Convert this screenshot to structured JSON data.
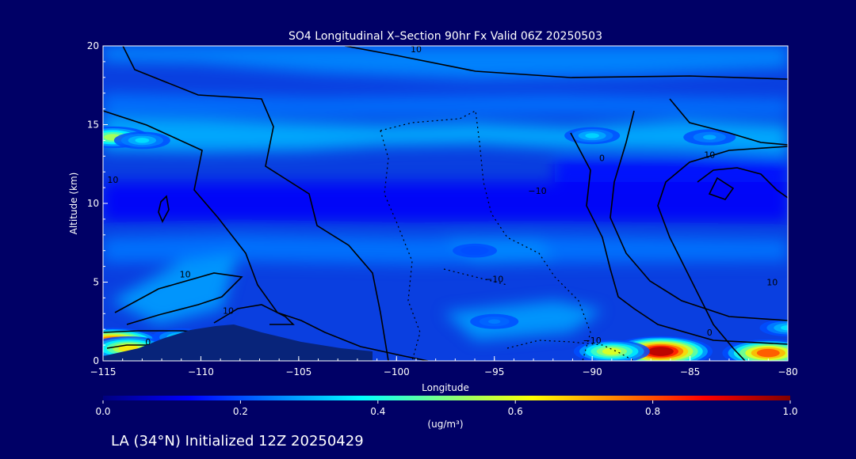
{
  "chart_data": {
    "type": "heatmap",
    "title": "SO4 Longitudinal X–Section 90hr  Fx Valid 06Z 20250503",
    "xlabel": "Longitude",
    "ylabel": "Altitude (km)",
    "xlim": [
      -115,
      -80
    ],
    "ylim": [
      0,
      20
    ],
    "x_ticks": [
      -115,
      -110,
      -105,
      -100,
      -95,
      -90,
      -85,
      -80
    ],
    "x_tick_labels": [
      "−115",
      "−110",
      "−105",
      "−100",
      "−95",
      "−90",
      "−85",
      "−80"
    ],
    "y_ticks": [
      0,
      5,
      10,
      15,
      20
    ],
    "y_tick_labels": [
      "0",
      "5",
      "10",
      "15",
      "20"
    ],
    "colorbar": {
      "min": 0.0,
      "max": 1.0,
      "units": "(ug/m³)",
      "ticks": [
        0.0,
        0.2,
        0.4,
        0.6,
        0.8,
        1.0
      ],
      "tick_labels": [
        "0.0",
        "0.2",
        "0.4",
        "0.6",
        "0.8",
        "1.0"
      ],
      "colors": [
        "#00007f",
        "#0000ff",
        "#0080ff",
        "#00ffff",
        "#80ff80",
        "#ffff00",
        "#ff8000",
        "#ff0000",
        "#7f0000"
      ]
    },
    "concentration_features": [
      {
        "lon": -114.5,
        "alt": 14.2,
        "value": 0.55
      },
      {
        "lon": -113,
        "alt": 14,
        "value": 0.35
      },
      {
        "lon": -90,
        "alt": 14.3,
        "value": 0.34
      },
      {
        "lon": -84,
        "alt": 14.2,
        "value": 0.3
      },
      {
        "lon": -114.5,
        "alt": 1.2,
        "value": 0.85
      },
      {
        "lon": -113.7,
        "alt": 0.8,
        "value": 0.65
      },
      {
        "lon": -111,
        "alt": 1.5,
        "value": 0.38
      },
      {
        "lon": -86.5,
        "alt": 0.6,
        "value": 0.95
      },
      {
        "lon": -89,
        "alt": 0.6,
        "value": 0.6
      },
      {
        "lon": -81,
        "alt": 0.5,
        "value": 0.8
      },
      {
        "lon": -80,
        "alt": 2.1,
        "value": 0.35
      },
      {
        "lon": -95,
        "alt": 2.5,
        "value": 0.25
      },
      {
        "lon": -96,
        "alt": 7,
        "value": 0.2
      }
    ],
    "contour_labels": [
      {
        "text": "10",
        "lon": -99,
        "alt": 19.6
      },
      {
        "text": "10",
        "lon": -114.5,
        "alt": 11.3
      },
      {
        "text": "10",
        "lon": -110.8,
        "alt": 5.3
      },
      {
        "text": "10",
        "lon": -108.6,
        "alt": 3.0
      },
      {
        "text": "0",
        "lon": -112.7,
        "alt": 1.0
      },
      {
        "text": "0",
        "lon": -89.5,
        "alt": 12.7
      },
      {
        "text": "−10",
        "lon": -92.8,
        "alt": 10.6
      },
      {
        "text": "−10",
        "lon": -95,
        "alt": 5.0
      },
      {
        "text": "−10",
        "lon": -90,
        "alt": 1.1
      },
      {
        "text": "10",
        "lon": -84,
        "alt": 12.9
      },
      {
        "text": "10",
        "lon": -80.8,
        "alt": 4.8
      },
      {
        "text": "0",
        "lon": -84,
        "alt": 1.6
      }
    ]
  },
  "footer": {
    "caption": "LA (34°N) Initialized 12Z 20250429"
  }
}
